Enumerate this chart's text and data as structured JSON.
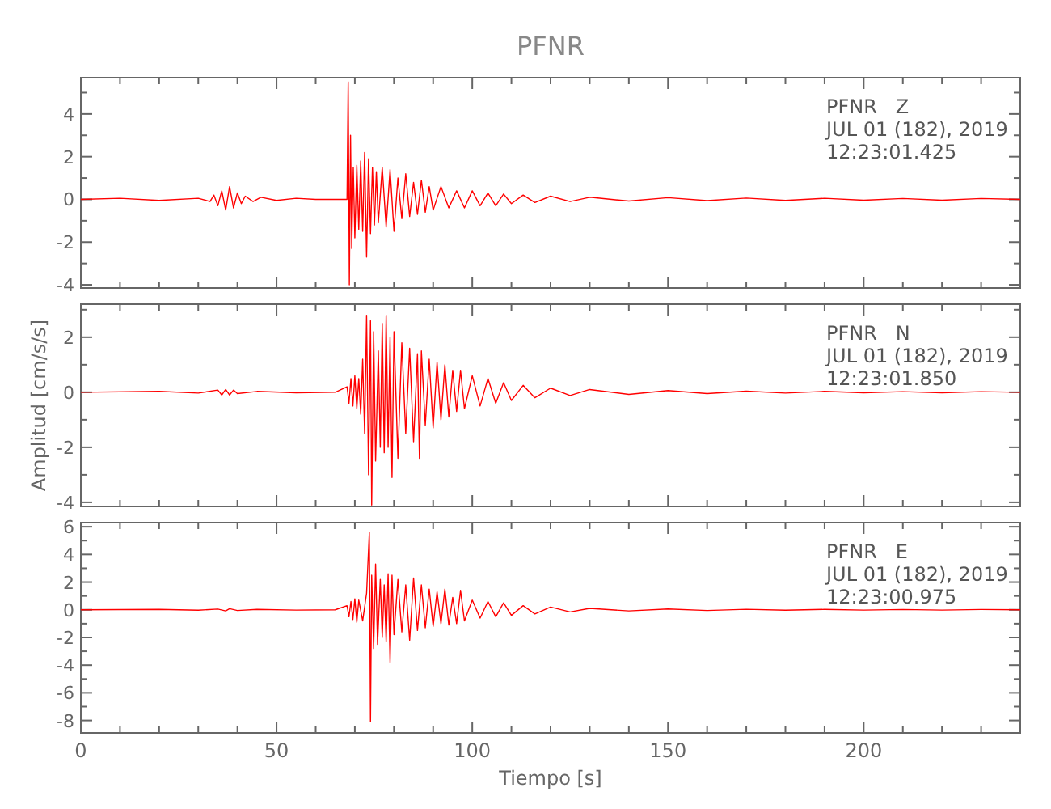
{
  "chart_data": [
    {
      "type": "line",
      "title": "PFNR",
      "xlim": [
        0,
        240
      ],
      "ylim": [
        -4.15,
        5.7
      ],
      "tick_labels": "y",
      "xticks": [
        0,
        {
          "value": 10,
          "label": null
        },
        {
          "value": 20,
          "label": null
        },
        {
          "value": 30,
          "label": null
        },
        {
          "value": 40,
          "label": null
        },
        50,
        {
          "value": 60,
          "label": null
        },
        {
          "value": 70,
          "label": null
        },
        {
          "value": 80,
          "label": null
        },
        {
          "value": 90,
          "label": null
        },
        100,
        {
          "value": 110,
          "label": null
        },
        {
          "value": 120,
          "label": null
        },
        {
          "value": 130,
          "label": null
        },
        {
          "value": 140,
          "label": null
        },
        150,
        {
          "value": 160,
          "label": null
        },
        {
          "value": 170,
          "label": null
        },
        {
          "value": 180,
          "label": null
        },
        {
          "value": 190,
          "label": null
        },
        200,
        {
          "value": 210,
          "label": null
        },
        {
          "value": 220,
          "label": null
        },
        {
          "value": 230,
          "label": null
        }
      ],
      "yticks": [
        -4,
        {
          "value": -3,
          "label": null
        },
        -2,
        {
          "value": -1,
          "label": null
        },
        0,
        {
          "value": 1,
          "label": null
        },
        2,
        {
          "value": 3,
          "label": null
        },
        4,
        {
          "value": 5,
          "label": null
        }
      ],
      "annotations": [
        "PFNR   Z",
        "JUL 01 (182), 2019",
        "12:23:01.425"
      ],
      "series": [
        {
          "color": "#ff0000",
          "x": [
            0,
            10,
            20,
            30,
            33,
            34,
            35,
            36,
            37,
            38,
            39,
            40,
            41,
            42,
            44,
            46,
            50,
            55,
            60,
            65,
            68,
            68.3,
            68.6,
            68.9,
            69.2,
            69.6,
            70,
            70.5,
            71,
            71.5,
            72,
            72.5,
            73,
            73.5,
            74,
            74.5,
            75,
            75.5,
            76,
            77,
            78,
            79,
            80,
            81,
            82,
            83,
            84,
            85,
            86,
            87,
            88,
            89,
            90,
            92,
            94,
            96,
            98,
            100,
            102,
            104,
            106,
            108,
            110,
            113,
            116,
            120,
            125,
            130,
            140,
            150,
            160,
            170,
            180,
            190,
            200,
            210,
            220,
            230,
            240
          ],
          "values": [
            0,
            0.05,
            -0.05,
            0.05,
            -0.1,
            0.2,
            -0.3,
            0.4,
            -0.5,
            0.6,
            -0.4,
            0.3,
            -0.2,
            0.15,
            -0.1,
            0.1,
            -0.05,
            0.05,
            0,
            0,
            0,
            5.5,
            -4,
            3,
            -2.3,
            1.5,
            -1.8,
            1.6,
            -1.4,
            1.8,
            -1.5,
            2.2,
            -2.7,
            1.9,
            -1.6,
            1.5,
            -1.2,
            1.3,
            -1.1,
            1.5,
            -1.3,
            1.4,
            -1.5,
            1,
            -0.9,
            1.2,
            -0.8,
            0.8,
            -0.7,
            0.9,
            -0.6,
            0.6,
            -0.5,
            0.6,
            -0.4,
            0.4,
            -0.4,
            0.4,
            -0.3,
            0.3,
            -0.3,
            0.25,
            -0.2,
            0.2,
            -0.15,
            0.15,
            -0.1,
            0.1,
            -0.08,
            0.08,
            -0.06,
            0.06,
            -0.05,
            0.05,
            -0.04,
            0.04,
            -0.04,
            0.04,
            0
          ]
        }
      ]
    },
    {
      "type": "line",
      "ylabel": "Amplitud [cm/s/s]",
      "xlim": [
        0,
        240
      ],
      "ylim": [
        -4.15,
        3.2
      ],
      "tick_labels": "y",
      "xticks": [
        0,
        {
          "value": 10,
          "label": null
        },
        {
          "value": 20,
          "label": null
        },
        {
          "value": 30,
          "label": null
        },
        {
          "value": 40,
          "label": null
        },
        50,
        {
          "value": 60,
          "label": null
        },
        {
          "value": 70,
          "label": null
        },
        {
          "value": 80,
          "label": null
        },
        {
          "value": 90,
          "label": null
        },
        100,
        {
          "value": 110,
          "label": null
        },
        {
          "value": 120,
          "label": null
        },
        {
          "value": 130,
          "label": null
        },
        {
          "value": 140,
          "label": null
        },
        150,
        {
          "value": 160,
          "label": null
        },
        {
          "value": 170,
          "label": null
        },
        {
          "value": 180,
          "label": null
        },
        {
          "value": 190,
          "label": null
        },
        200,
        {
          "value": 210,
          "label": null
        },
        {
          "value": 220,
          "label": null
        },
        {
          "value": 230,
          "label": null
        }
      ],
      "yticks": [
        -4,
        {
          "value": -3,
          "label": null
        },
        -2,
        {
          "value": -1,
          "label": null
        },
        0,
        {
          "value": 1,
          "label": null
        },
        2,
        {
          "value": 3,
          "label": null
        }
      ],
      "annotations": [
        "PFNR   N",
        "JUL 01 (182), 2019",
        "12:23:01.850"
      ],
      "series": [
        {
          "color": "#ff0000",
          "x": [
            0,
            20,
            30,
            35,
            36,
            37,
            38,
            39,
            40,
            45,
            55,
            65,
            68,
            68.5,
            69,
            69.5,
            70,
            70.5,
            71,
            71.5,
            72,
            72.5,
            73,
            73.5,
            74,
            74.3,
            74.8,
            75.3,
            76,
            76.5,
            77,
            77.5,
            78,
            78.5,
            79,
            79.5,
            80,
            81,
            82,
            83,
            84,
            85,
            86,
            86.5,
            87,
            88,
            89,
            90,
            91,
            92,
            93,
            94,
            95,
            96,
            97,
            98,
            100,
            102,
            104,
            106,
            108,
            110,
            113,
            116,
            120,
            125,
            130,
            140,
            150,
            160,
            170,
            180,
            190,
            200,
            210,
            220,
            230,
            240
          ],
          "values": [
            0,
            0.03,
            -0.03,
            0.08,
            -0.1,
            0.1,
            -0.1,
            0.08,
            -0.05,
            0.03,
            -0.02,
            0,
            0.2,
            -0.4,
            0.5,
            -0.5,
            0.6,
            -0.6,
            0.5,
            -0.8,
            1.2,
            -1.5,
            2.8,
            -3,
            2.6,
            -4.1,
            2.2,
            -2.5,
            1.5,
            -2,
            2.5,
            -2.2,
            2.8,
            -2,
            2,
            -3.1,
            2.2,
            -2.4,
            1.8,
            -1.5,
            1.6,
            -1.8,
            1.4,
            -2.4,
            1.5,
            -1.2,
            1.2,
            -1.3,
            1.1,
            -1,
            1,
            -0.9,
            0.8,
            -0.7,
            0.8,
            -0.6,
            0.6,
            -0.5,
            0.5,
            -0.4,
            0.35,
            -0.3,
            0.25,
            -0.2,
            0.15,
            -0.12,
            0.1,
            -0.08,
            0.06,
            -0.05,
            0.04,
            -0.03,
            0.03,
            -0.02,
            0.02,
            -0.02,
            0.02,
            0
          ]
        }
      ]
    },
    {
      "type": "line",
      "xlabel": "Tiempo [s]",
      "xlim": [
        0,
        240
      ],
      "ylim": [
        -8.9,
        6.3
      ],
      "xticks": [
        0,
        {
          "value": 10,
          "label": null
        },
        {
          "value": 20,
          "label": null
        },
        {
          "value": 30,
          "label": null
        },
        {
          "value": 40,
          "label": null
        },
        50,
        {
          "value": 60,
          "label": null
        },
        {
          "value": 70,
          "label": null
        },
        {
          "value": 80,
          "label": null
        },
        {
          "value": 90,
          "label": null
        },
        100,
        {
          "value": 110,
          "label": null
        },
        {
          "value": 120,
          "label": null
        },
        {
          "value": 130,
          "label": null
        },
        {
          "value": 140,
          "label": null
        },
        150,
        {
          "value": 160,
          "label": null
        },
        {
          "value": 170,
          "label": null
        },
        {
          "value": 180,
          "label": null
        },
        {
          "value": 190,
          "label": null
        },
        200,
        {
          "value": 210,
          "label": null
        },
        {
          "value": 220,
          "label": null
        },
        {
          "value": 230,
          "label": null
        }
      ],
      "yticks": [
        -8,
        {
          "value": -7,
          "label": null
        },
        -6,
        {
          "value": -5,
          "label": null
        },
        -4,
        {
          "value": -3,
          "label": null
        },
        -2,
        {
          "value": -1,
          "label": null
        },
        0,
        {
          "value": 1,
          "label": null
        },
        2,
        {
          "value": 3,
          "label": null
        },
        4,
        {
          "value": 5,
          "label": null
        },
        6
      ],
      "annotations": [
        "PFNR   E",
        "JUL 01 (182), 2019",
        "12:23:00.975"
      ],
      "series": [
        {
          "color": "#ff0000",
          "x": [
            0,
            20,
            30,
            35,
            37,
            38,
            40,
            45,
            55,
            65,
            68,
            68.5,
            69,
            69.5,
            70,
            70.5,
            71,
            72,
            73,
            73.7,
            74,
            74.3,
            74.8,
            75.3,
            75.8,
            76.5,
            77,
            77.5,
            78,
            78.5,
            79,
            79.5,
            80,
            81,
            82,
            83,
            84,
            85,
            86,
            87,
            88,
            89,
            90,
            91,
            92,
            93,
            94,
            95,
            96,
            97,
            98,
            100,
            102,
            104,
            106,
            108,
            110,
            113,
            116,
            120,
            125,
            130,
            140,
            150,
            160,
            170,
            180,
            190,
            200,
            210,
            220,
            230,
            240
          ],
          "values": [
            0,
            0.03,
            -0.03,
            0.05,
            -0.08,
            0.08,
            -0.05,
            0.03,
            -0.02,
            0,
            0.3,
            -0.5,
            0.6,
            -0.7,
            0.8,
            -0.9,
            0.7,
            -0.8,
            1.2,
            5.6,
            -8.1,
            2.5,
            -2.8,
            3.3,
            -2.5,
            2.2,
            -2,
            1.8,
            -2.3,
            2.6,
            -3.8,
            2.5,
            -1.8,
            2.2,
            -1.6,
            1.8,
            -2.2,
            2.3,
            -1.5,
            1.8,
            -1.3,
            1.5,
            -1.2,
            1.3,
            -1,
            1.5,
            -1.1,
            0.9,
            -1,
            1.4,
            -0.8,
            0.7,
            -0.6,
            0.6,
            -0.5,
            0.5,
            -0.4,
            0.3,
            -0.3,
            0.2,
            -0.15,
            0.1,
            -0.08,
            0.06,
            -0.05,
            0.04,
            -0.03,
            0.03,
            -0.02,
            0.02,
            -0.02,
            0.02,
            0
          ]
        }
      ]
    }
  ]
}
